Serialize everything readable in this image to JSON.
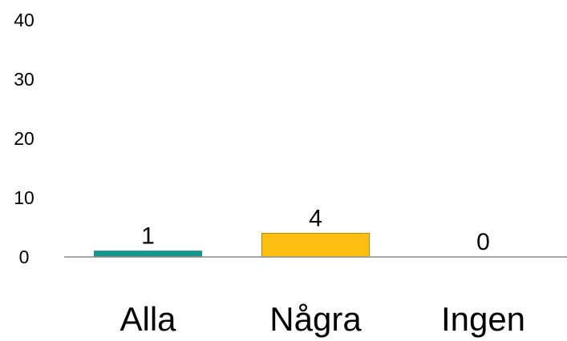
{
  "chart_data": {
    "type": "bar",
    "title": "",
    "xlabel": "",
    "ylabel": "",
    "categories": [
      "Alla",
      "Några",
      "Ingen"
    ],
    "values": [
      1,
      4,
      0
    ],
    "data_labels": [
      "1",
      "4",
      "0"
    ],
    "yticks": [
      "0",
      "10",
      "20",
      "30",
      "40"
    ],
    "ylim": [
      0,
      40
    ],
    "grid": false,
    "legend": "none",
    "colors": [
      "#17968d",
      "#fdc012",
      "#8c8c8c"
    ],
    "bar_border_colors": [
      "#17968d",
      "#b58a00",
      "#8c8c8c"
    ],
    "axis_color": "#8c8c8c"
  }
}
